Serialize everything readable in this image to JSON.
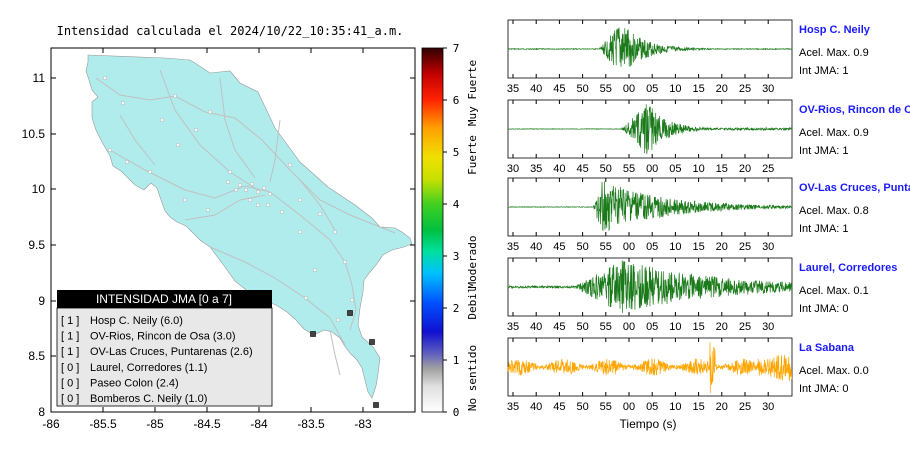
{
  "map": {
    "title": "Intensidad calculada el 2024/10/22_10:35:41_a.m.",
    "x_ticks": [
      "-86",
      "-85.5",
      "-85",
      "-84.5",
      "-84",
      "-83.5",
      "-83"
    ],
    "y_ticks": [
      "11",
      "10.5",
      "10",
      "9.5",
      "9",
      "8.5",
      "8"
    ],
    "land_color": "#b0ecec",
    "legend": {
      "title": "INTENSIDAD JMA [0 a 7]",
      "entries": [
        {
          "level": "[ 1 ]",
          "name": "Hosp C. Neily (6.0)"
        },
        {
          "level": "[ 1 ]",
          "name": "OV-Rios, Rincon de Osa (3.0)"
        },
        {
          "level": "[ 1 ]",
          "name": "OV-Las Cruces, Puntarenas (2.6)"
        },
        {
          "level": "[ 0 ]",
          "name": "Laurel, Corredores (1.1)"
        },
        {
          "level": "[ 0 ]",
          "name": "Paseo Colon (2.4)"
        },
        {
          "level": "[ 0 ]",
          "name": "Bomberos C. Neily (1.0)"
        }
      ]
    }
  },
  "colorbar": {
    "ticks": [
      "7",
      "6",
      "5",
      "4",
      "3",
      "2",
      "1",
      "0"
    ],
    "labels": [
      "Muy Fuerte",
      "Fuerte",
      "Moderado",
      "Debil",
      "No sentido"
    ]
  },
  "waveforms": {
    "xlabel": "Tiempo (s)",
    "accel_label": "Acel. Max.",
    "int_label": "Int JMA:",
    "traces": [
      {
        "station": "Hosp C. Neily",
        "accel": "0.9",
        "int": "1",
        "color": "#1a7a1a",
        "onset": 0.32,
        "peak": 0.4,
        "amp": 1.0,
        "decay": 0.08,
        "noise": 0.015,
        "pre": 0.0,
        "ticks": [
          "35",
          "40",
          "45",
          "50",
          "55",
          "00",
          "05",
          "10",
          "15",
          "20",
          "25",
          "30"
        ]
      },
      {
        "station": "OV-Rios, Rincon de Osa",
        "accel": "0.9",
        "int": "1",
        "color": "#1a7a1a",
        "onset": 0.4,
        "peak": 0.49,
        "amp": 1.0,
        "decay": 0.07,
        "noise": 0.01,
        "pre": 0.03,
        "ticks": [
          "30",
          "35",
          "40",
          "45",
          "50",
          "55",
          "00",
          "05",
          "10",
          "15",
          "20",
          "25"
        ]
      },
      {
        "station": "OV-Las Cruces, Puntar",
        "accel": "0.8",
        "int": "1",
        "color": "#1a7a1a",
        "onset": 0.3,
        "peak": 0.33,
        "amp": 1.0,
        "decay": 0.22,
        "noise": 0.01,
        "pre": 0.0,
        "ticks": [
          "35",
          "40",
          "45",
          "50",
          "55",
          "00",
          "05",
          "10",
          "15",
          "20",
          "25",
          "30"
        ]
      },
      {
        "station": "Laurel, Corredores",
        "accel": "0.1",
        "int": "0",
        "color": "#1a7a1a",
        "onset": 0.23,
        "peak": 0.4,
        "amp": 1.0,
        "decay": 0.35,
        "noise": 0.04,
        "pre": 0.0,
        "ticks": [
          "35",
          "40",
          "45",
          "50",
          "55",
          "00",
          "05",
          "10",
          "15",
          "20",
          "25",
          "30"
        ]
      },
      {
        "station": "La Sabana",
        "accel": "0.0",
        "int": "0",
        "color": "#ffa500",
        "onset": 0.0,
        "peak": 0.72,
        "amp": 0.55,
        "decay": 5.0,
        "noise": 0.35,
        "pre": 0.0,
        "ticks": [
          "35",
          "40",
          "45",
          "50",
          "55",
          "00",
          "05",
          "10",
          "15",
          "20",
          "25",
          "30"
        ]
      }
    ]
  }
}
